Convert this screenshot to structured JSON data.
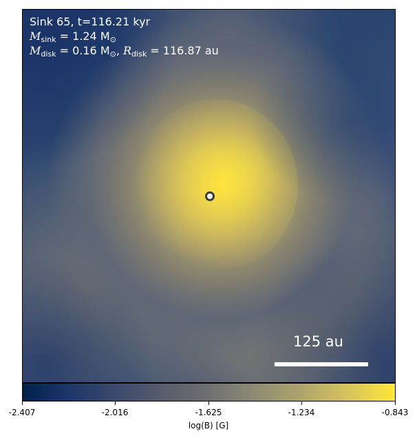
{
  "annotations": {
    "line1": "Sink 65, t=116.21 kyr",
    "msink_symbol": "M",
    "msink_sub": "sink",
    "msink_value": " = 1.24 M",
    "sun_sub": "⊙",
    "mdisk_symbol": "M",
    "mdisk_sub": "disk",
    "mdisk_value": " = 0.16 M",
    "rdisk_symbol": "R",
    "rdisk_sub": "disk",
    "rdisk_value": " = 116.87 au"
  },
  "scale_bar": {
    "label": "125 au"
  },
  "colorbar": {
    "label": "log(B) [G]",
    "ticks": [
      "-2.407",
      "-2.016",
      "-1.625",
      "-1.234",
      "-0.843"
    ],
    "colors": [
      "#00204c",
      "#fee838"
    ]
  }
}
